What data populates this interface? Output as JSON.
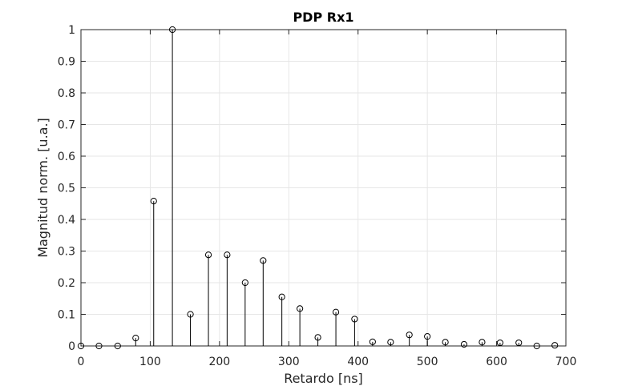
{
  "chart_data": {
    "type": "stem",
    "title": "PDP Rx1",
    "xlabel": "Retardo [ns]",
    "ylabel": "Magnitud norm. [u.a.]",
    "xlim": [
      0,
      700
    ],
    "ylim": [
      0,
      1
    ],
    "xticks": [
      0,
      100,
      200,
      300,
      400,
      500,
      600,
      700
    ],
    "yticks": [
      0,
      0.1,
      0.2,
      0.3,
      0.4,
      0.5,
      0.6,
      0.7,
      0.8,
      0.9,
      1
    ],
    "grid": true,
    "marker": "circle",
    "colors": {
      "stem": "#000000",
      "grid": "#e6e6e6",
      "axis": "#262626"
    },
    "x": [
      0,
      26,
      53,
      79,
      105,
      132,
      158,
      184,
      211,
      237,
      263,
      290,
      316,
      342,
      368,
      395,
      421,
      447,
      474,
      500,
      526,
      553,
      579,
      605,
      632,
      658,
      684
    ],
    "values": [
      0.0,
      0.0,
      0.0,
      0.025,
      0.458,
      1.0,
      0.1,
      0.288,
      0.288,
      0.2,
      0.27,
      0.155,
      0.118,
      0.027,
      0.107,
      0.085,
      0.013,
      0.012,
      0.035,
      0.03,
      0.012,
      0.005,
      0.012,
      0.01,
      0.01,
      0.0,
      0.002
    ]
  }
}
